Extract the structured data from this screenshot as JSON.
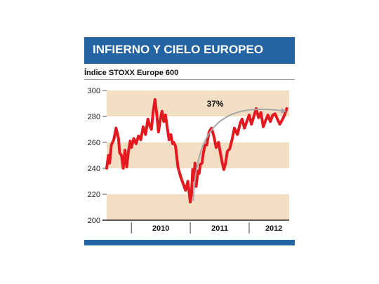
{
  "header": {
    "title": "INFIERNO Y CIELO EUROPEO"
  },
  "colors": {
    "header_bg": "#2464a4",
    "band": "#f2dfc3",
    "line": "#e3191f",
    "arrow": "#a6a6a6",
    "footer": "#2464a4"
  },
  "chart_data": {
    "type": "line",
    "title": "INFIERNO Y CIELO EUROPEO",
    "subtitle": "Índice STOXX Europe 600",
    "xlabel": "",
    "ylabel": "",
    "ylim": [
      200,
      300
    ],
    "yticks": [
      200,
      220,
      240,
      260,
      280,
      300
    ],
    "ytick_labels": [
      "200",
      "220",
      "240",
      "260",
      "280",
      "300"
    ],
    "xlim": [
      2009.58,
      2012.68
    ],
    "year_labels": [
      {
        "label": "2010",
        "x": 2010.5
      },
      {
        "label": "2011",
        "x": 2011.5
      },
      {
        "label": "2012",
        "x": 2012.42
      }
    ],
    "year_dividers": [
      2010,
      2011,
      2012
    ],
    "grid": "alternating horizontal bands",
    "annotation": {
      "text": "37%",
      "from_x": 2011.05,
      "from_y": 215,
      "to_x": 2012.6,
      "to_y": 284
    },
    "series": [
      {
        "x": [
          2009.58,
          2009.61,
          2009.63,
          2009.66,
          2009.7,
          2009.74,
          2009.78,
          2009.8,
          2009.83,
          2009.86,
          2009.89,
          2009.92,
          2009.95,
          2009.98,
          2010.0,
          2010.04,
          2010.08,
          2010.12,
          2010.16,
          2010.2,
          2010.24,
          2010.28,
          2010.31,
          2010.34,
          2010.37,
          2010.4,
          2010.43,
          2010.46,
          2010.49,
          2010.52,
          2010.55,
          2010.58,
          2010.61,
          2010.64,
          2010.67,
          2010.7,
          2010.72,
          2010.75,
          2010.79,
          2010.84,
          2010.88,
          2010.92,
          2010.96,
          2011.0,
          2011.02,
          2011.04,
          2011.06,
          2011.08,
          2011.1,
          2011.13,
          2011.15,
          2011.17,
          2011.2,
          2011.22,
          2011.25,
          2011.28,
          2011.32,
          2011.36,
          2011.4,
          2011.44,
          2011.48,
          2011.51,
          2011.54,
          2011.57,
          2011.6,
          2011.63,
          2011.67,
          2011.71,
          2011.75,
          2011.8,
          2011.85,
          2011.88,
          2011.92,
          2011.96,
          2012.0,
          2012.04,
          2012.08,
          2012.12,
          2012.16,
          2012.2,
          2012.24,
          2012.28,
          2012.32,
          2012.36,
          2012.4,
          2012.44,
          2012.48,
          2012.52,
          2012.56,
          2012.6,
          2012.64
        ],
        "y": [
          240,
          250,
          244,
          258,
          262,
          271,
          263,
          252,
          250,
          240,
          254,
          241,
          253,
          261,
          256,
          263,
          259,
          265,
          262,
          272,
          266,
          278,
          273,
          270,
          284,
          293,
          282,
          268,
          277,
          284,
          276,
          281,
          271,
          262,
          266,
          259,
          260,
          257,
          241,
          233,
          228,
          223,
          230,
          214,
          220,
          239,
          231,
          244,
          226,
          238,
          236,
          243,
          244,
          251,
          258,
          258,
          268,
          271,
          265,
          256,
          260,
          252,
          245,
          239,
          244,
          253,
          255,
          262,
          271,
          266,
          275,
          278,
          271,
          276,
          281,
          274,
          280,
          286,
          279,
          283,
          272,
          277,
          281,
          276,
          281,
          282,
          278,
          274,
          277,
          281,
          286
        ]
      }
    ]
  }
}
